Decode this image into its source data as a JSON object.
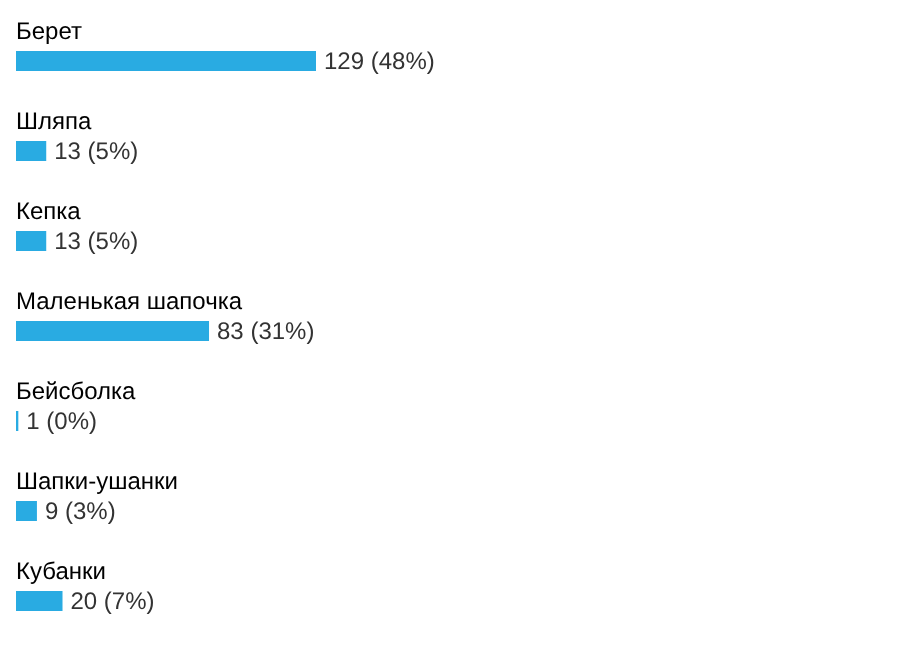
{
  "chart_data": {
    "type": "bar",
    "orientation": "horizontal",
    "categories": [
      "Берет",
      "Шляпа",
      "Кепка",
      "Маленькая шапочка",
      "Бейсболка",
      "Шапки-ушанки",
      "Кубанки"
    ],
    "values": [
      129,
      13,
      13,
      83,
      1,
      9,
      20
    ],
    "value_labels": [
      "129 (48%)",
      "13 (5%)",
      "13 (5%)",
      "83 (31%)",
      "1 (0%)",
      "9 (3%)",
      "20 (7%)"
    ],
    "color": "#29abe2"
  }
}
